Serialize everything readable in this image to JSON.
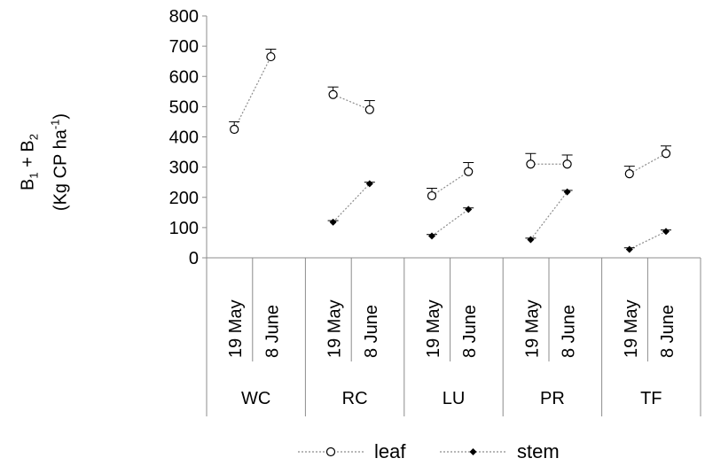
{
  "chart_data": {
    "type": "line",
    "ylabel_line1": {
      "B": "B",
      "s1": "1",
      "plus": " + B",
      "s2": "2"
    },
    "ylabel_line2": {
      "pre": "(Kg CP ha",
      "sup": "-1",
      "post": ")"
    },
    "ylim": [
      0,
      800
    ],
    "yticks": [
      "0",
      "100",
      "200",
      "300",
      "400",
      "500",
      "600",
      "700",
      "800"
    ],
    "groups": [
      {
        "name": "WC",
        "dates": [
          "19 May",
          "8 June"
        ]
      },
      {
        "name": "RC",
        "dates": [
          "19 May",
          "8 June"
        ]
      },
      {
        "name": "LU",
        "dates": [
          "19 May",
          "8 June"
        ]
      },
      {
        "name": "PR",
        "dates": [
          "19 May",
          "8 June"
        ]
      },
      {
        "name": "TF",
        "dates": [
          "19 May",
          "8 June"
        ]
      }
    ],
    "series": [
      {
        "name": "leaf",
        "marker": "open-circle",
        "values": [
          [
            425,
            665
          ],
          [
            540,
            490
          ],
          [
            205,
            285
          ],
          [
            310,
            310
          ],
          [
            278,
            345
          ]
        ],
        "errors": [
          [
            25,
            25
          ],
          [
            25,
            30
          ],
          [
            25,
            30
          ],
          [
            35,
            30
          ],
          [
            25,
            25
          ]
        ]
      },
      {
        "name": "stem",
        "marker": "filled-diamond",
        "values": [
          [
            null,
            null
          ],
          [
            118,
            245
          ],
          [
            72,
            160
          ],
          [
            60,
            218
          ],
          [
            28,
            87
          ]
        ],
        "errors": [
          [
            0,
            0
          ],
          [
            5,
            5
          ],
          [
            5,
            5
          ],
          [
            5,
            5
          ],
          [
            5,
            5
          ]
        ]
      }
    ],
    "legend_position": "bottom",
    "grid": false
  }
}
